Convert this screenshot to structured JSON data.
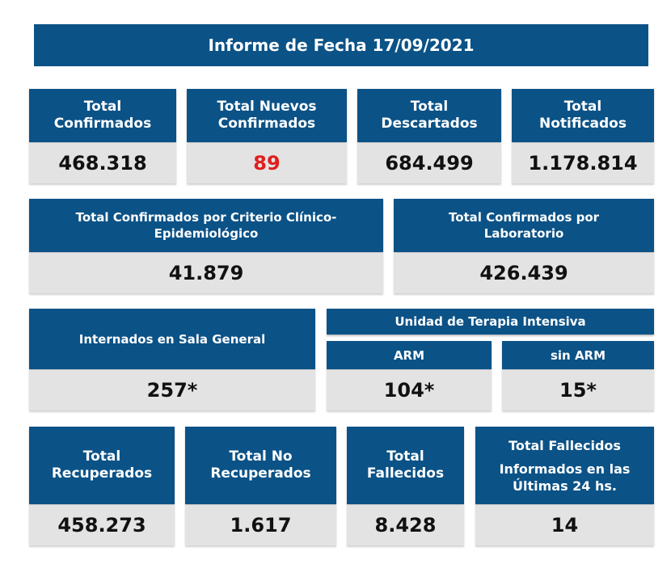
{
  "title": "Informe de Fecha 17/09/2021",
  "row1": [
    {
      "label_line1": "Total",
      "label_line2": "Confirmados",
      "value": "468.318"
    },
    {
      "label_line1": "Total Nuevos",
      "label_line2": "Confirmados",
      "value": "89",
      "value_color": "#e01f1f"
    },
    {
      "label_line1": "Total",
      "label_line2": "Descartados",
      "value": "684.499"
    },
    {
      "label_line1": "Total",
      "label_line2": "Notificados",
      "value": "1.178.814"
    }
  ],
  "row2": [
    {
      "label_line1": "Total Confirmados por Criterio Clínico-",
      "label_line2": "Epidemiológico",
      "value": "41.879"
    },
    {
      "label_line1": "Total Confirmados por",
      "label_line2": "Laboratorio",
      "value": "426.439"
    }
  ],
  "row3": {
    "sala_general": {
      "label": "Internados en Sala General",
      "value": "257*"
    },
    "uti": {
      "label": "Unidad de Terapia Intensiva",
      "arm": {
        "label": "ARM",
        "value": "104*"
      },
      "sin_arm": {
        "label": "sin ARM",
        "value": "15*"
      }
    }
  },
  "row4": [
    {
      "label_line1": "Total",
      "label_line2": "Recuperados",
      "value": "458.273"
    },
    {
      "label_line1": "Total No",
      "label_line2": "Recuperados",
      "value": "1.617"
    },
    {
      "label_line1": "Total",
      "label_line2": "Fallecidos",
      "value": "8.428"
    },
    {
      "label_line1": "Total Fallecidos",
      "label_line2": "Informados en las",
      "label_line3": "Últimas 24 hs.",
      "value": "14"
    }
  ],
  "colors": {
    "header_blue": "#0b5287",
    "value_bg": "#e3e3e3",
    "highlight_red": "#e01f1f"
  }
}
